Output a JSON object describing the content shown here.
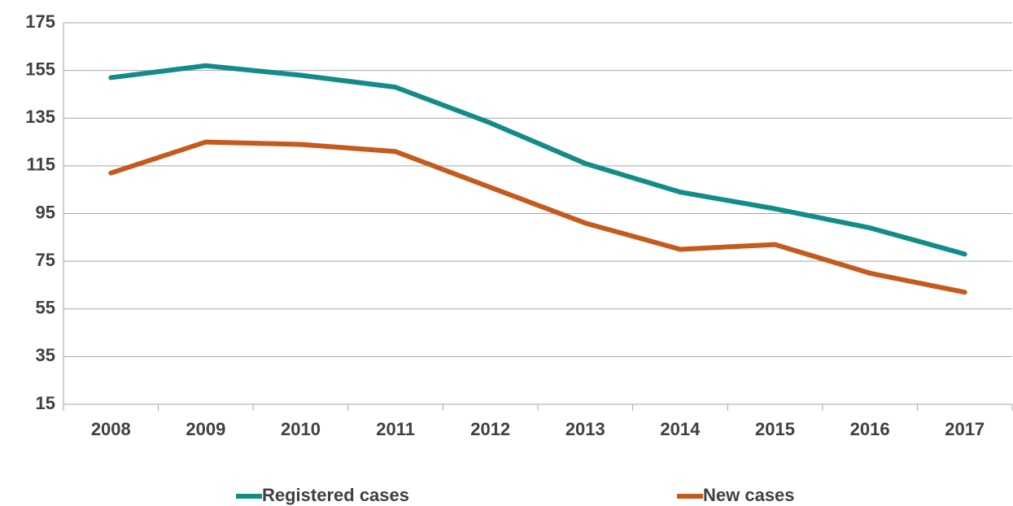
{
  "chart_data": {
    "type": "line",
    "categories": [
      "2008",
      "2009",
      "2010",
      "2011",
      "2012",
      "2013",
      "2014",
      "2015",
      "2016",
      "2017"
    ],
    "series": [
      {
        "name": "Registered cases",
        "color": "#138c88",
        "values": [
          152,
          157,
          153,
          148,
          133,
          116,
          104,
          97,
          89,
          78
        ]
      },
      {
        "name": "New cases",
        "color": "#c55a1c",
        "values": [
          112,
          125,
          124,
          121,
          106,
          91,
          80,
          82,
          70,
          62
        ]
      }
    ],
    "ylim": [
      15,
      175
    ],
    "yticks": [
      15,
      35,
      55,
      75,
      95,
      115,
      135,
      155,
      175
    ],
    "grid": true,
    "legend": "bottom"
  }
}
